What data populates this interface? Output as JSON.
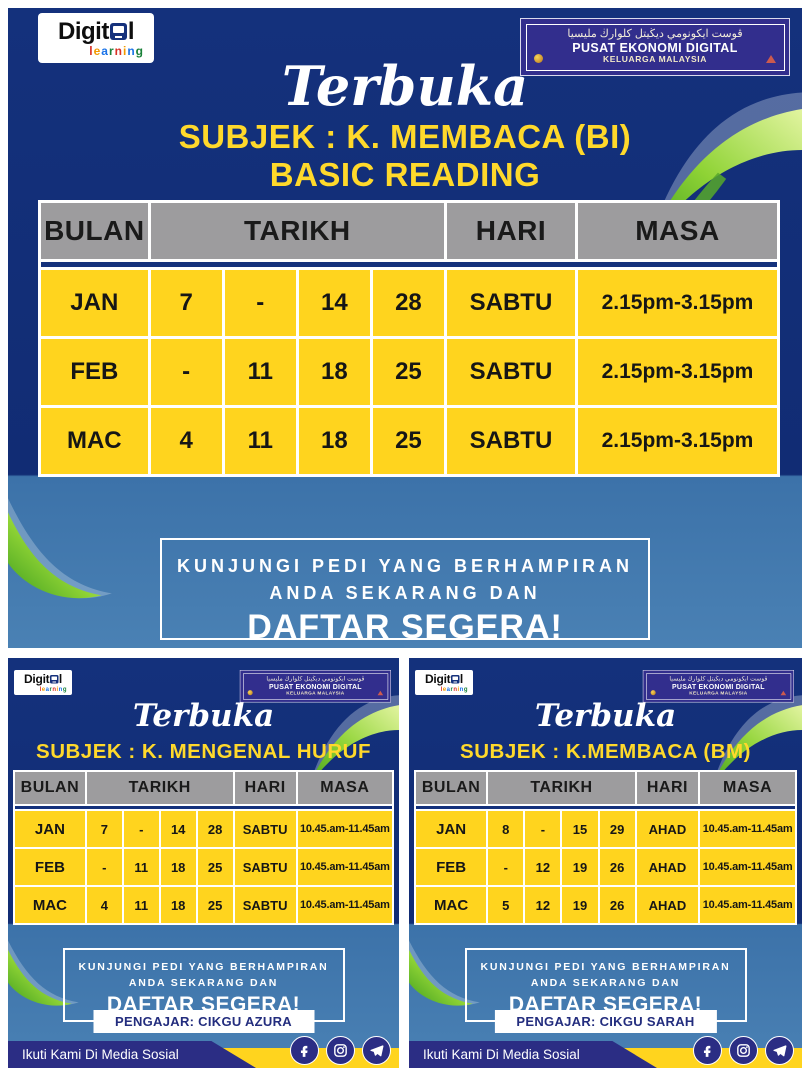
{
  "colors": {
    "navy": "#14317c",
    "mid_blue": "#3c72a9",
    "cell_yellow": "#ffd41e",
    "header_gray": "#9d9c9e",
    "title_yellow": "#ffd92b",
    "badge_navy": "#322e8d",
    "banner_navy": "#2b2d84",
    "wave_green": "#8fd335"
  },
  "logo": {
    "part1": "Digit",
    "part2": "l",
    "subtitle": "learning",
    "letter_colors": [
      "#d93025",
      "#f29900",
      "#1a73e8",
      "#188038",
      "#d93025",
      "#f29900",
      "#1a73e8",
      "#188038"
    ],
    "icon": "monitor-icon"
  },
  "badge": {
    "jawi": "ڤوست ايكونومي ديڬيتل كلوارڬ مليسيا",
    "line1": "PUSAT EKONOMI DIGITAL",
    "line2": "KELUARGA MALAYSIA"
  },
  "cta": {
    "line1": "KUNJUNGI PEDI YANG BERHAMPIRAN",
    "line2": "ANDA SEKARANG DAN",
    "line3": "DAFTAR SEGERA!"
  },
  "footer": {
    "label": "Ikuti Kami Di Media Sosial",
    "icons": [
      "facebook-icon",
      "instagram-icon",
      "telegram-icon"
    ]
  },
  "table_headers": [
    "BULAN",
    "TARIKH",
    "HARI",
    "MASA"
  ],
  "posters": {
    "main": {
      "script_title": "Terbuka",
      "subject_line1": "SUBJEK : K. MEMBACA (BI)",
      "subject_line2": "BASIC READING",
      "rows": [
        {
          "bulan": "JAN",
          "d1": "7",
          "d2": "-",
          "d3": "14",
          "d4": "28",
          "hari": "SABTU",
          "masa": "2.15pm-3.15pm"
        },
        {
          "bulan": "FEB",
          "d1": "-",
          "d2": "11",
          "d3": "18",
          "d4": "25",
          "hari": "SABTU",
          "masa": "2.15pm-3.15pm"
        },
        {
          "bulan": "MAC",
          "d1": "4",
          "d2": "11",
          "d3": "18",
          "d4": "25",
          "hari": "SABTU",
          "masa": "2.15pm-3.15pm"
        }
      ]
    },
    "left": {
      "script_title": "Terbuka",
      "subject_line1": "SUBJEK : K. MENGENAL HURUF",
      "teacher": "PENGAJAR: CIKGU AZURA",
      "rows": [
        {
          "bulan": "JAN",
          "d1": "7",
          "d2": "-",
          "d3": "14",
          "d4": "28",
          "hari": "SABTU",
          "masa": "10.45.am-11.45am"
        },
        {
          "bulan": "FEB",
          "d1": "-",
          "d2": "11",
          "d3": "18",
          "d4": "25",
          "hari": "SABTU",
          "masa": "10.45.am-11.45am"
        },
        {
          "bulan": "MAC",
          "d1": "4",
          "d2": "11",
          "d3": "18",
          "d4": "25",
          "hari": "SABTU",
          "masa": "10.45.am-11.45am"
        }
      ]
    },
    "right": {
      "script_title": "Terbuka",
      "subject_line1": "SUBJEK : K.MEMBACA (BM)",
      "teacher": "PENGAJAR: CIKGU SARAH",
      "rows": [
        {
          "bulan": "JAN",
          "d1": "8",
          "d2": "-",
          "d3": "15",
          "d4": "29",
          "hari": "AHAD",
          "masa": "10.45.am-11.45am"
        },
        {
          "bulan": "FEB",
          "d1": "-",
          "d2": "12",
          "d3": "19",
          "d4": "26",
          "hari": "AHAD",
          "masa": "10.45.am-11.45am"
        },
        {
          "bulan": "MAC",
          "d1": "5",
          "d2": "12",
          "d3": "19",
          "d4": "26",
          "hari": "AHAD",
          "masa": "10.45.am-11.45am"
        }
      ]
    }
  }
}
